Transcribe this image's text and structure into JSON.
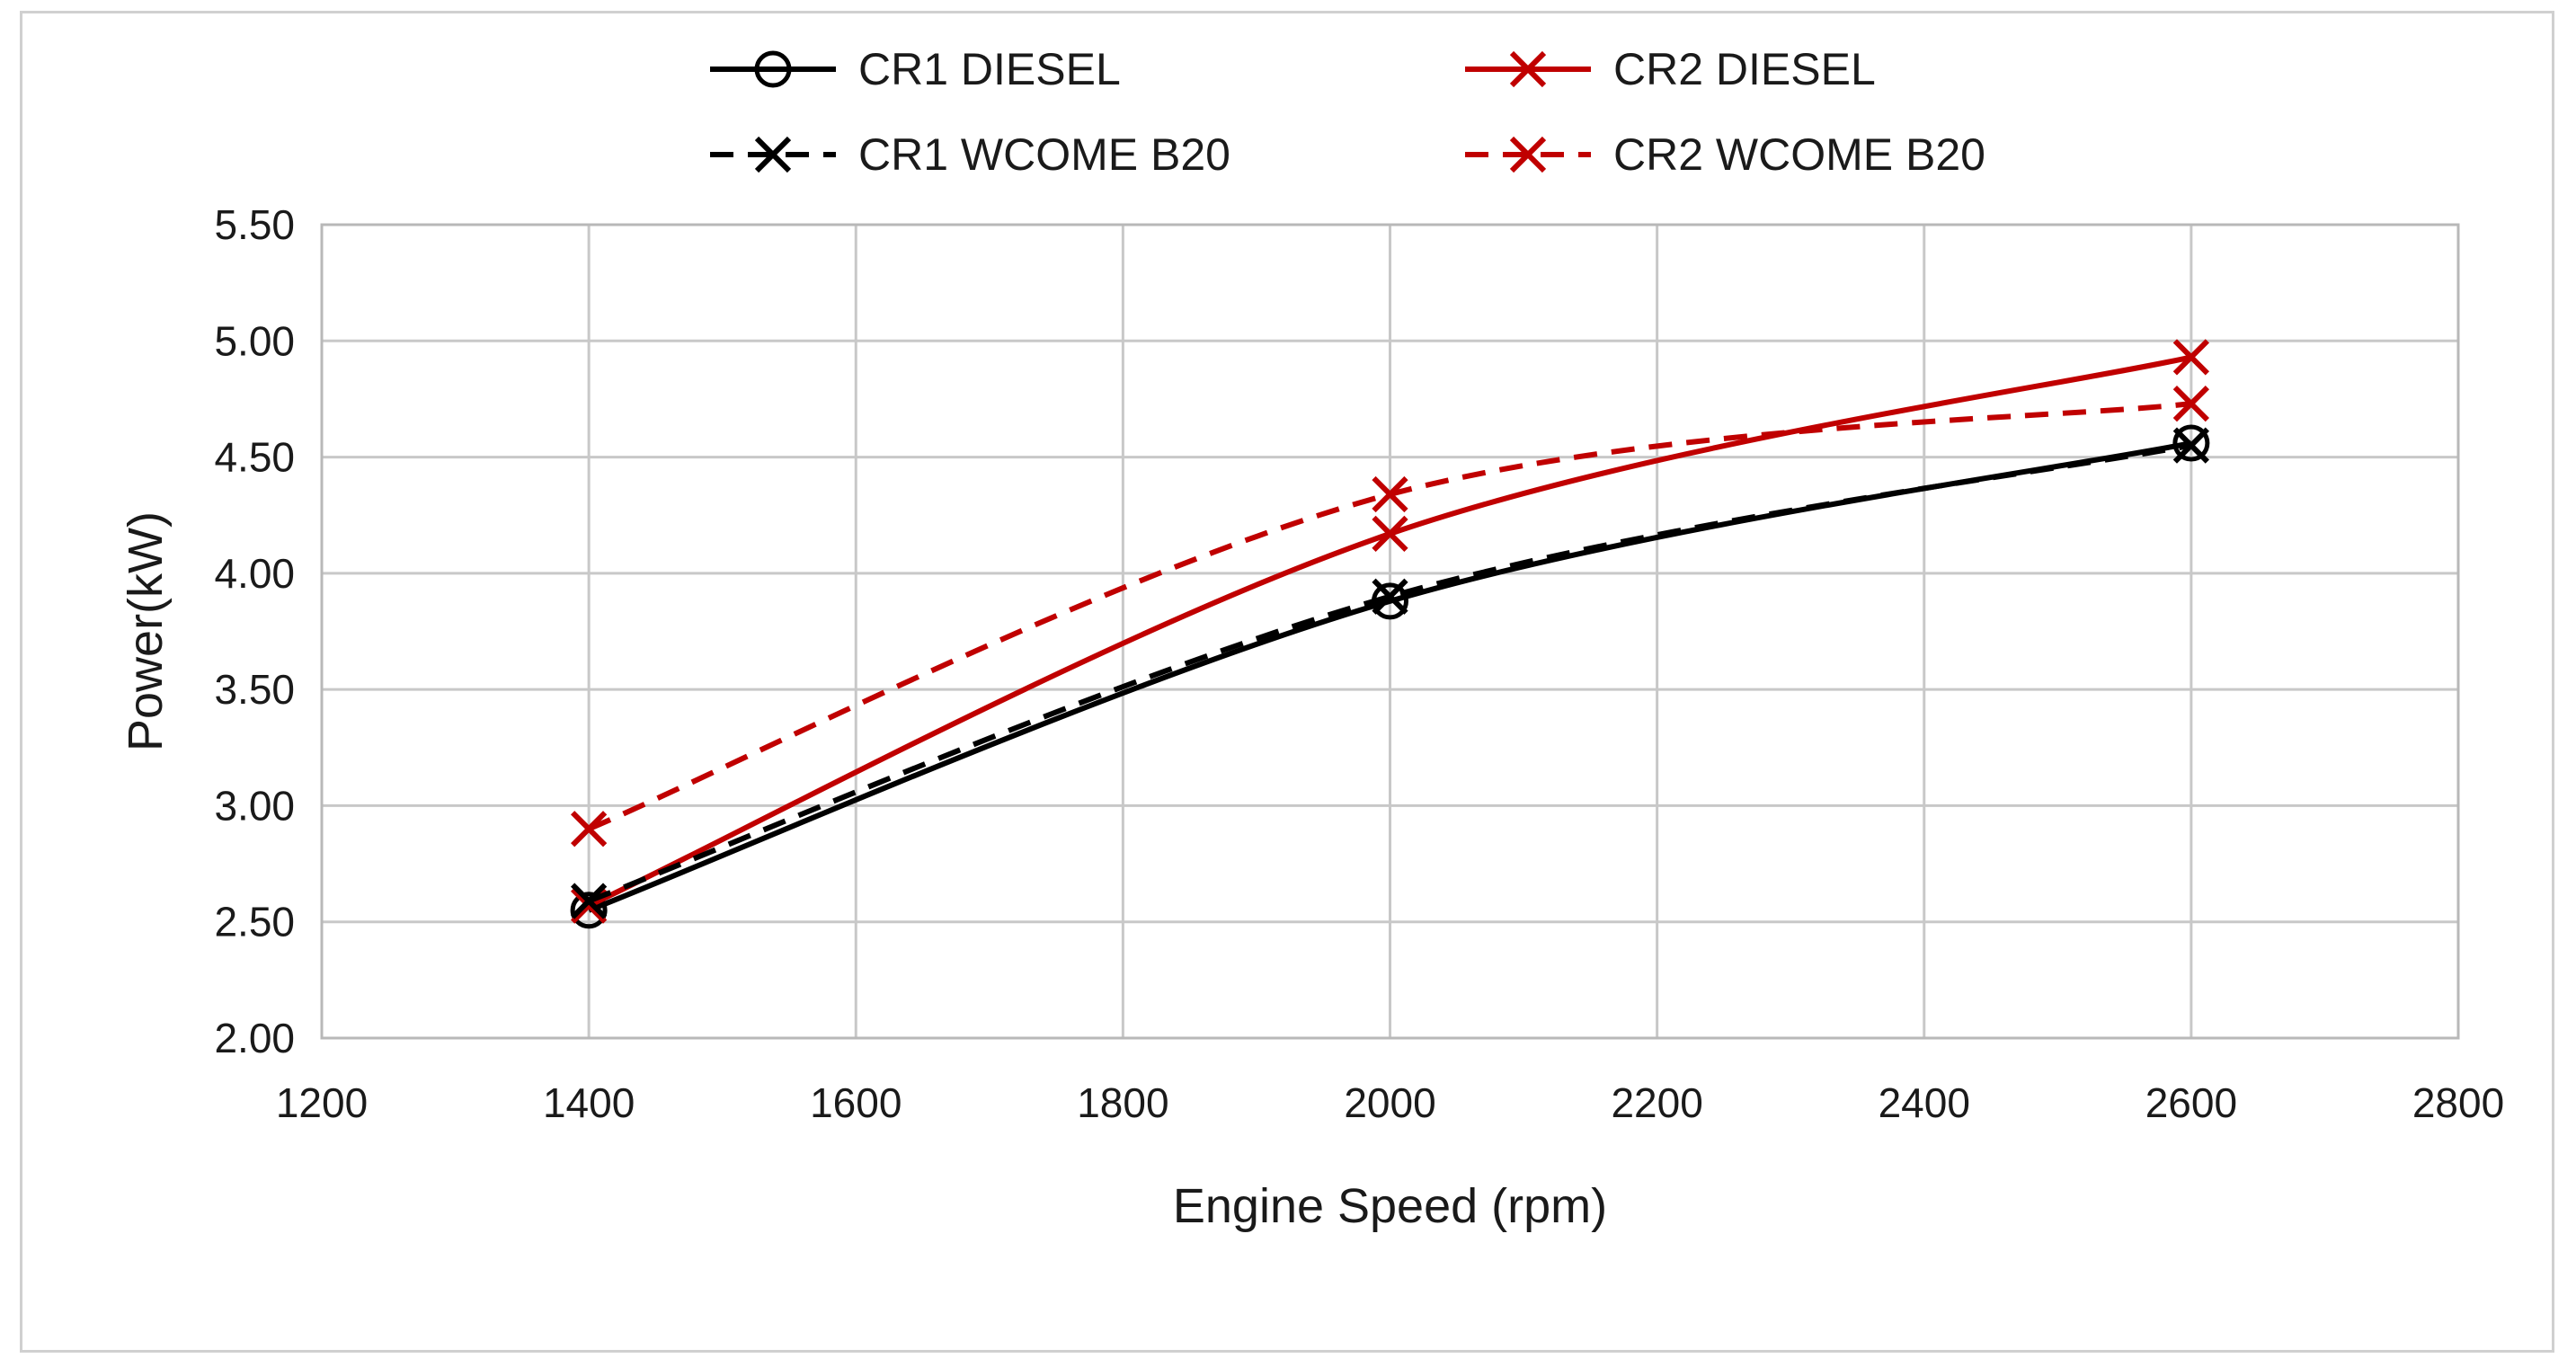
{
  "chart_data": {
    "type": "line",
    "title": "",
    "xlabel": "Engine Speed (rpm)",
    "ylabel": "Power(kW)",
    "xlim": [
      1200,
      2800
    ],
    "ylim": [
      2.0,
      5.5
    ],
    "x_ticks": [
      1200,
      1400,
      1600,
      1800,
      2000,
      2200,
      2400,
      2600,
      2800
    ],
    "y_ticks": [
      2.0,
      2.5,
      3.0,
      3.5,
      4.0,
      4.5,
      5.0,
      5.5
    ],
    "x_tick_labels": [
      "1200",
      "1400",
      "1600",
      "1800",
      "2000",
      "2200",
      "2400",
      "2600",
      "2800"
    ],
    "y_tick_labels": [
      "2.00",
      "2.50",
      "3.00",
      "3.50",
      "4.00",
      "4.50",
      "5.00",
      "5.50"
    ],
    "grid": true,
    "legend_position": "top",
    "x": [
      1400,
      2000,
      2600
    ],
    "series": [
      {
        "name": "CR1 DIESEL",
        "values": [
          2.55,
          3.88,
          4.56
        ],
        "color": "#000000",
        "dash": "solid",
        "marker": "circle"
      },
      {
        "name": "CR2 DIESEL",
        "values": [
          2.57,
          4.17,
          4.93
        ],
        "color": "#c00000",
        "dash": "solid",
        "marker": "x"
      },
      {
        "name": "CR1 WCOME B20",
        "values": [
          2.59,
          3.9,
          4.55
        ],
        "color": "#000000",
        "dash": "dashed",
        "marker": "x"
      },
      {
        "name": "CR2 WCOME B20",
        "values": [
          2.9,
          4.34,
          4.73
        ],
        "color": "#c00000",
        "dash": "dashed",
        "marker": "x"
      }
    ]
  }
}
